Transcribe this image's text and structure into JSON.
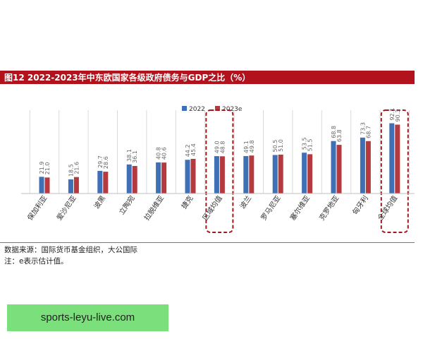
{
  "figure": {
    "title": "图12   2022-2023年中东欧国家各级政府债务与GDP之比（%）",
    "source_note": "数据来源：国际货币基金组织，大公国际",
    "estimate_note": "注：e表示估计值。"
  },
  "promo": {
    "text": "sports-leyu-live.com"
  },
  "colors": {
    "title_bar": "#b1121c",
    "series_2022": "#3f6fb4",
    "series_2023": "#b53a3f",
    "highlight": "#a3181e",
    "promo_bg": "#7be07b"
  },
  "chart_data": {
    "type": "bar",
    "categories": [
      "保加利亚",
      "爱沙尼亚",
      "波黑",
      "立陶宛",
      "拉脱维亚",
      "捷克",
      "区域均值",
      "波兰",
      "罗马尼亚",
      "塞尔维亚",
      "克罗地亚",
      "匈牙利",
      "全球均值"
    ],
    "series": [
      {
        "name": "2022",
        "values": [
          21.9,
          18.5,
          29.7,
          38.1,
          40.8,
          44.2,
          49.0,
          49.1,
          50.5,
          53.5,
          68.8,
          73.3,
          92.1
        ]
      },
      {
        "name": "2023e",
        "values": [
          21.0,
          21.6,
          28.6,
          36.1,
          40.6,
          45.4,
          48.8,
          49.8,
          51.0,
          51.5,
          63.8,
          68.7,
          90.3
        ]
      }
    ],
    "highlighted_categories": [
      "区域均值",
      "全球均值"
    ],
    "ylim": [
      0,
      100
    ],
    "legend_position": "top-center",
    "grid": false,
    "xlabel": "",
    "ylabel": ""
  }
}
